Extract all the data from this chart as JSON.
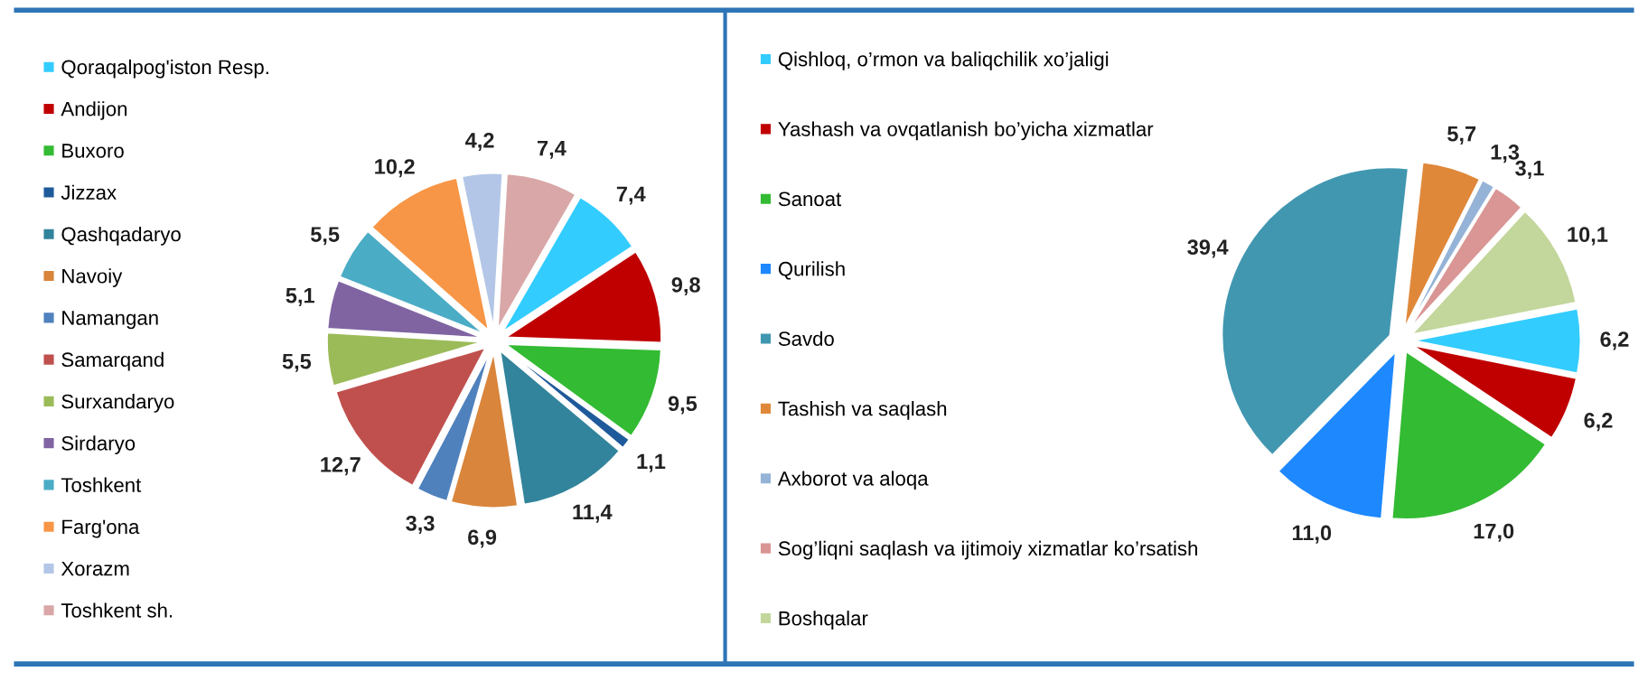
{
  "chart_data": [
    {
      "type": "pie",
      "legend": "left",
      "categories": [
        "Qoraqalpog'iston Resp.",
        "Andijon",
        "Buxoro",
        "Jizzax",
        "Qashqadaryo",
        "Navoiy",
        "Namangan",
        "Samarqand",
        "Surxandaryo",
        "Sirdaryo",
        "Toshkent",
        "Farg'ona",
        "Xorazm",
        "Toshkent sh."
      ],
      "values": [
        7.4,
        9.8,
        9.5,
        1.1,
        11.4,
        6.9,
        3.3,
        12.7,
        5.5,
        5.1,
        5.5,
        10.2,
        4.2,
        7.4
      ],
      "value_labels": [
        "7,4",
        "9,8",
        "9,5",
        "1,1",
        "11,4",
        "6,9",
        "3,3",
        "12,7",
        "5,5",
        "5,1",
        "5,5",
        "10,2",
        "4,2",
        "7,4"
      ],
      "colors": [
        "#33ccff",
        "#c00000",
        "#33bb33",
        "#1f5a9a",
        "#31849b",
        "#d9853b",
        "#4f81bd",
        "#c0504d",
        "#9bbb59",
        "#8064a2",
        "#4bacc6",
        "#f79646",
        "#b3c6e7",
        "#d9a7a7"
      ]
    },
    {
      "type": "pie",
      "legend": "left",
      "categories": [
        "Qishloq, o’rmon va baliqchilik xo’jaligi",
        "Yashash va ovqatlanish bo’yicha xizmatlar",
        "Sanoat",
        "Qurilish",
        "Savdo",
        "Tashish va saqlash",
        "Axborot va aloqa",
        "Sog’liqni saqlash va ijtimoiy xizmatlar ko’rsatish",
        "Boshqalar"
      ],
      "values": [
        6.2,
        6.2,
        17.0,
        11.0,
        39.4,
        5.7,
        1.3,
        3.1,
        10.1
      ],
      "value_labels": [
        "6,2",
        "6,2",
        "17,0",
        "11,0",
        "39,4",
        "5,7",
        "1,3",
        "3,1",
        "10,1"
      ],
      "colors": [
        "#33ccff",
        "#c00000",
        "#33bb33",
        "#1e88ff",
        "#4197b0",
        "#e0883a",
        "#95b3d7",
        "#d99694",
        "#c3d69b"
      ]
    }
  ]
}
